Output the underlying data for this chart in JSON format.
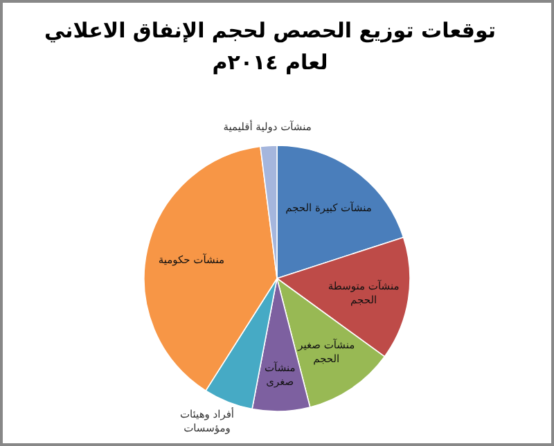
{
  "chart_data": {
    "type": "pie",
    "title": "توقعات توزيع الحصص لحجم الإنفاق الاعلاني\nلعام ٢٠١٤م",
    "categories": [
      "منشآت كبيرة الحجم",
      "منشآت متوسطة الحجم",
      "منشآت صغير الحجم",
      "منشآت صغرى",
      "أفراد وهيئات ومؤسسات",
      "منشآت حكومية",
      "منشآت دولية أقليمية"
    ],
    "values": [
      20,
      15,
      11,
      7,
      6,
      39,
      2
    ],
    "colors": [
      "#4a7ebb",
      "#be4b48",
      "#98b954",
      "#7d60a0",
      "#46aac5",
      "#f79646",
      "#a5b6dd"
    ]
  }
}
